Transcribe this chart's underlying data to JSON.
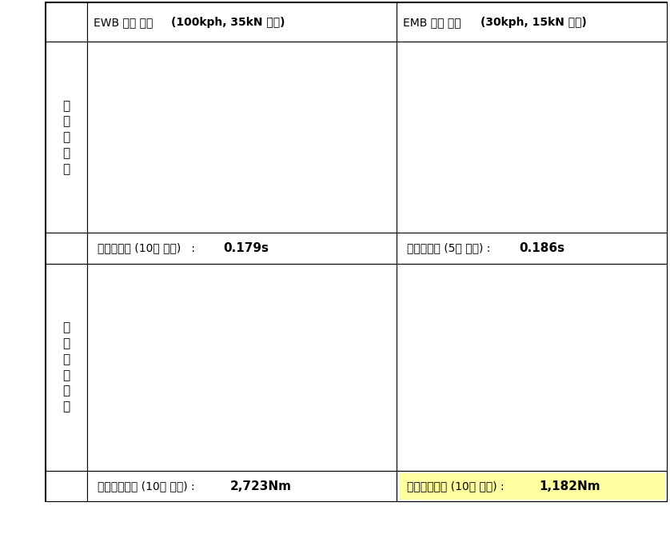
{
  "header_col1_normal": "EWB 시험 결과 ",
  "header_col1_bold": "(100kph, 35kN 기준)",
  "header_col2_normal": "EMB 시험 결과 ",
  "header_col2_bold": "(30kph, 15kN 기준)",
  "row1_label": "제\n동\n응\n답\n성",
  "row2_label": "발\n생\n제\n동\n토\n크",
  "caption_ewb_response_normal": "제동응답성 (10회 평균)   : ",
  "caption_ewb_response_bold": "0.179s",
  "caption_emb_response_normal": "제동응답성 (5회 평균) : ",
  "caption_emb_response_bold": "0.186s",
  "caption_ewb_torque_normal": "발생제동토크 (10회 평균) : ",
  "caption_ewb_torque_bold": "2,723Nm",
  "caption_emb_torque_normal": "발생제동토크 (10회 평균) : ",
  "caption_emb_torque_bold": "1,182Nm",
  "bg_color": "#ffffff",
  "border_color": "#000000",
  "header_fontsize": 10,
  "label_fontsize": 11,
  "caption_fontsize": 10,
  "caption_bold_fontsize": 11
}
